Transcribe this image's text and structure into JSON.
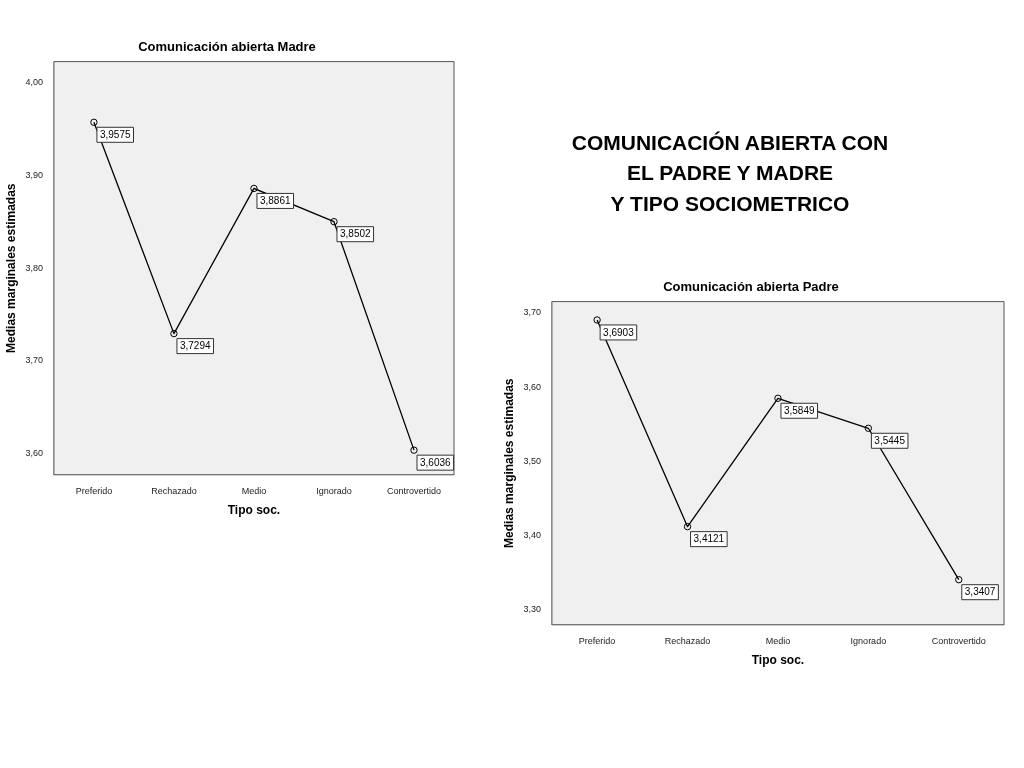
{
  "chart_data": [
    {
      "type": "line",
      "title": "Comunicación abierta Madre",
      "xlabel": "Tipo soc.",
      "ylabel": "Medias marginales estimadas",
      "categories": [
        "Preferido",
        "Rechazado",
        "Medio",
        "Ignorado",
        "Controvertido"
      ],
      "series": [
        {
          "color": "#000000",
          "values": [
            3.9575,
            3.7294,
            3.8861,
            3.8502,
            3.6036
          ],
          "value_labels": [
            "3,9575",
            "3,7294",
            "3,8861",
            "3,8502",
            "3,6036"
          ]
        }
      ],
      "ylim": [
        3.577,
        4.023
      ],
      "yticks": [
        {
          "value": 3.6,
          "label": "3,60"
        },
        {
          "value": 3.7,
          "label": "3,70"
        },
        {
          "value": 3.8,
          "label": "3,80"
        },
        {
          "value": 3.9,
          "label": "3,90"
        },
        {
          "value": 4.0,
          "label": "4,00"
        }
      ],
      "grid": false,
      "legend": false,
      "marker": "circle",
      "line_style": "solid"
    },
    {
      "type": "other",
      "title": "COMUNICACIÓN ABIERTA CON\nEL PADRE Y MADRE\nY TIPO SOCIOMETRICO"
    },
    {
      "type": "line",
      "title": "Comunicación abierta Padre",
      "xlabel": "Tipo soc.",
      "ylabel": "Medias marginales estimadas",
      "categories": [
        "Preferido",
        "Rechazado",
        "Medio",
        "Ignorado",
        "Controvertido"
      ],
      "series": [
        {
          "color": "#000000",
          "values": [
            3.6903,
            3.4121,
            3.5849,
            3.5445,
            3.3407
          ],
          "value_labels": [
            "3,6903",
            "3,4121",
            "3,5849",
            "3,5445",
            "3,3407"
          ]
        }
      ],
      "ylim": [
        3.28,
        3.715
      ],
      "yticks": [
        {
          "value": 3.3,
          "label": "3,30"
        },
        {
          "value": 3.4,
          "label": "3,40"
        },
        {
          "value": 3.5,
          "label": "3,50"
        },
        {
          "value": 3.6,
          "label": "3,60"
        },
        {
          "value": 3.7,
          "label": "3,70"
        }
      ],
      "grid": false,
      "legend": false,
      "marker": "circle",
      "line_style": "solid"
    }
  ]
}
